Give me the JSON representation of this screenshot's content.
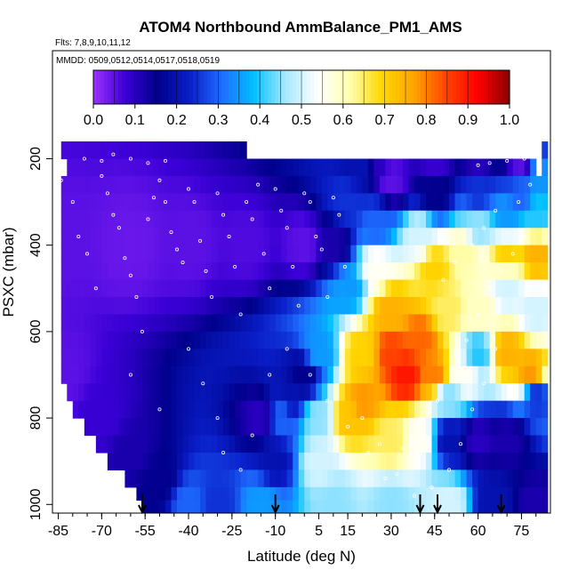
{
  "chart_data": {
    "type": "heatmap",
    "title": "ATOM4 Northbound AmmBalance_PM1_AMS",
    "flights_note": "Flts: 7,8,9,10,11,12",
    "dates_note": "MMDD: 0509,0512,0514,0517,0518,0519",
    "xlabel": "Latitude (deg N)",
    "ylabel": "PSXC (mbar)",
    "x_ticks": [
      "-85",
      "-70",
      "-55",
      "-40",
      "-25",
      "-10",
      "5",
      "15",
      "30",
      "45",
      "60",
      "75"
    ],
    "x_tick_values": [
      -85,
      -70,
      -55,
      -40,
      -25,
      -10,
      5,
      15,
      30,
      45,
      60,
      75
    ],
    "x_minor_step": 5,
    "xlim": [
      -87,
      85
    ],
    "y_ticks": [
      "200",
      "400",
      "600",
      "800",
      "1000"
    ],
    "y_tick_values": [
      200,
      400,
      600,
      800,
      1000
    ],
    "ylim": [
      1020,
      -50
    ],
    "colorbar": {
      "ticks": [
        "0.0",
        "0.1",
        "0.2",
        "0.3",
        "0.4",
        "0.5",
        "0.6",
        "0.7",
        "0.8",
        "0.9",
        "1.0"
      ],
      "range": [
        0,
        1
      ],
      "colors": [
        "#9b30ff",
        "#3a00d6",
        "#00008b",
        "#0a1ec8",
        "#1e6cff",
        "#00bfff",
        "#a8e8ff",
        "#ffffff",
        "#ffffb0",
        "#ffd700",
        "#ffa500",
        "#ff4500",
        "#ff0000",
        "#8b0000"
      ]
    },
    "pressure_levels": [
      180,
      220,
      260,
      300,
      340,
      380,
      420,
      460,
      500,
      540,
      580,
      620,
      660,
      700,
      740,
      780,
      820,
      860,
      900,
      940,
      980,
      1000
    ],
    "grid_lat_min": -84,
    "grid_lat_max": 82,
    "grid_lat_step": 2,
    "lower_left_boundary": [
      [
        190,
        -76
      ],
      [
        230,
        -84
      ],
      [
        330,
        -84
      ],
      [
        500,
        -84
      ],
      [
        620,
        -84
      ],
      [
        700,
        -83
      ],
      [
        740,
        -81
      ],
      [
        780,
        -79
      ],
      [
        820,
        -76
      ],
      [
        860,
        -72
      ],
      [
        900,
        -68
      ],
      [
        940,
        -62
      ],
      [
        980,
        -57
      ],
      [
        1020,
        -53
      ]
    ],
    "upper_boundary_by_lat": [
      [
        -76,
        180
      ],
      [
        -20,
        180
      ],
      [
        -19,
        185
      ],
      [
        80,
        185
      ],
      [
        80,
        230
      ],
      [
        82,
        230
      ]
    ],
    "anchor_points": [
      {
        "lat": -84,
        "p": 400,
        "v": 0.05
      },
      {
        "lat": -60,
        "p": 400,
        "v": 0.04
      },
      {
        "lat": -40,
        "p": 400,
        "v": 0.05
      },
      {
        "lat": -20,
        "p": 400,
        "v": 0.06
      },
      {
        "lat": 0,
        "p": 400,
        "v": 0.05
      },
      {
        "lat": 10,
        "p": 400,
        "v": 0.12
      },
      {
        "lat": -84,
        "p": 700,
        "v": 0.05
      },
      {
        "lat": -70,
        "p": 800,
        "v": 0.08
      },
      {
        "lat": -60,
        "p": 880,
        "v": 0.12
      },
      {
        "lat": -50,
        "p": 950,
        "v": 0.15
      },
      {
        "lat": -40,
        "p": 1000,
        "v": 0.3
      },
      {
        "lat": -30,
        "p": 1000,
        "v": 0.25
      },
      {
        "lat": -15,
        "p": 1000,
        "v": 0.35
      },
      {
        "lat": -10,
        "p": 900,
        "v": 0.2
      },
      {
        "lat": -15,
        "p": 800,
        "v": 0.1
      },
      {
        "lat": -8,
        "p": 800,
        "v": 0.3
      },
      {
        "lat": -5,
        "p": 750,
        "v": 0.2
      },
      {
        "lat": 0,
        "p": 700,
        "v": 0.15
      },
      {
        "lat": 5,
        "p": 650,
        "v": 0.35
      },
      {
        "lat": 5,
        "p": 800,
        "v": 0.45
      },
      {
        "lat": 5,
        "p": 900,
        "v": 0.5
      },
      {
        "lat": 10,
        "p": 1000,
        "v": 0.45
      },
      {
        "lat": 15,
        "p": 800,
        "v": 0.72
      },
      {
        "lat": 20,
        "p": 760,
        "v": 0.78
      },
      {
        "lat": 20,
        "p": 650,
        "v": 0.7
      },
      {
        "lat": 15,
        "p": 500,
        "v": 0.35
      },
      {
        "lat": 15,
        "p": 300,
        "v": 0.25
      },
      {
        "lat": 20,
        "p": 220,
        "v": 0.2
      },
      {
        "lat": 25,
        "p": 200,
        "v": 0.1
      },
      {
        "lat": 30,
        "p": 250,
        "v": 0.05
      },
      {
        "lat": 25,
        "p": 350,
        "v": 0.3
      },
      {
        "lat": 25,
        "p": 450,
        "v": 0.55
      },
      {
        "lat": 30,
        "p": 550,
        "v": 0.75
      },
      {
        "lat": 30,
        "p": 650,
        "v": 0.85
      },
      {
        "lat": 35,
        "p": 700,
        "v": 0.9
      },
      {
        "lat": 40,
        "p": 620,
        "v": 0.82
      },
      {
        "lat": 45,
        "p": 700,
        "v": 0.8
      },
      {
        "lat": 30,
        "p": 850,
        "v": 0.65
      },
      {
        "lat": 40,
        "p": 850,
        "v": 0.55
      },
      {
        "lat": 50,
        "p": 850,
        "v": 0.2
      },
      {
        "lat": 60,
        "p": 850,
        "v": 0.1
      },
      {
        "lat": 70,
        "p": 850,
        "v": 0.12
      },
      {
        "lat": 30,
        "p": 1000,
        "v": 0.45
      },
      {
        "lat": 50,
        "p": 1000,
        "v": 0.5
      },
      {
        "lat": 65,
        "p": 1000,
        "v": 0.2
      },
      {
        "lat": 80,
        "p": 1000,
        "v": 0.12
      },
      {
        "lat": 50,
        "p": 750,
        "v": 0.45
      },
      {
        "lat": 55,
        "p": 700,
        "v": 0.55
      },
      {
        "lat": 60,
        "p": 650,
        "v": 0.4
      },
      {
        "lat": 70,
        "p": 650,
        "v": 0.75
      },
      {
        "lat": 78,
        "p": 700,
        "v": 0.78
      },
      {
        "lat": 80,
        "p": 750,
        "v": 0.25
      },
      {
        "lat": 50,
        "p": 550,
        "v": 0.65
      },
      {
        "lat": 60,
        "p": 550,
        "v": 0.6
      },
      {
        "lat": 70,
        "p": 500,
        "v": 0.5
      },
      {
        "lat": 80,
        "p": 550,
        "v": 0.5
      },
      {
        "lat": 45,
        "p": 450,
        "v": 0.7
      },
      {
        "lat": 55,
        "p": 420,
        "v": 0.62
      },
      {
        "lat": 70,
        "p": 420,
        "v": 0.7
      },
      {
        "lat": 80,
        "p": 420,
        "v": 0.75
      },
      {
        "lat": 40,
        "p": 380,
        "v": 0.5
      },
      {
        "lat": 60,
        "p": 350,
        "v": 0.45
      },
      {
        "lat": 70,
        "p": 340,
        "v": 0.35
      },
      {
        "lat": 80,
        "p": 330,
        "v": 0.4
      },
      {
        "lat": 45,
        "p": 280,
        "v": 0.15
      },
      {
        "lat": 60,
        "p": 280,
        "v": 0.25
      },
      {
        "lat": 75,
        "p": 280,
        "v": 0.3
      },
      {
        "lat": 45,
        "p": 200,
        "v": 0.08
      },
      {
        "lat": 60,
        "p": 200,
        "v": 0.1
      },
      {
        "lat": 75,
        "p": 210,
        "v": 0.05
      },
      {
        "lat": 80,
        "p": 240,
        "v": 0.35
      }
    ],
    "flight_arrow_lats": [
      -56,
      -10,
      40,
      46,
      68
    ],
    "sample_points": [
      [
        -84,
        250
      ],
      [
        -80,
        300
      ],
      [
        -78,
        380
      ],
      [
        -75,
        420
      ],
      [
        -72,
        500
      ],
      [
        -70,
        240
      ],
      [
        -68,
        280
      ],
      [
        -66,
        330
      ],
      [
        -64,
        360
      ],
      [
        -62,
        430
      ],
      [
        -60,
        470
      ],
      [
        -58,
        520
      ],
      [
        -56,
        600
      ],
      [
        -54,
        340
      ],
      [
        -52,
        290
      ],
      [
        -50,
        250
      ],
      [
        -48,
        300
      ],
      [
        -46,
        370
      ],
      [
        -44,
        410
      ],
      [
        -42,
        440
      ],
      [
        -40,
        270
      ],
      [
        -38,
        300
      ],
      [
        -36,
        390
      ],
      [
        -34,
        460
      ],
      [
        -32,
        520
      ],
      [
        -30,
        280
      ],
      [
        -28,
        330
      ],
      [
        -26,
        380
      ],
      [
        -24,
        450
      ],
      [
        -22,
        560
      ],
      [
        -20,
        300
      ],
      [
        -18,
        340
      ],
      [
        -16,
        260
      ],
      [
        -14,
        420
      ],
      [
        -12,
        500
      ],
      [
        -10,
        270
      ],
      [
        -8,
        320
      ],
      [
        -6,
        360
      ],
      [
        -4,
        450
      ],
      [
        -2,
        540
      ],
      [
        0,
        280
      ],
      [
        2,
        300
      ],
      [
        4,
        380
      ],
      [
        6,
        410
      ],
      [
        8,
        520
      ],
      [
        10,
        290
      ],
      [
        12,
        330
      ],
      [
        14,
        450
      ],
      [
        -60,
        700
      ],
      [
        -50,
        780
      ],
      [
        -40,
        640
      ],
      [
        -35,
        720
      ],
      [
        -30,
        800
      ],
      [
        -28,
        880
      ],
      [
        -22,
        920
      ],
      [
        -18,
        840
      ],
      [
        -12,
        700
      ],
      [
        -6,
        640
      ],
      [
        2,
        700
      ],
      [
        8,
        760
      ],
      [
        15,
        820
      ],
      [
        22,
        880
      ],
      [
        28,
        940
      ],
      [
        34,
        870
      ],
      [
        40,
        800
      ],
      [
        46,
        760
      ],
      [
        52,
        690
      ],
      [
        56,
        620
      ],
      [
        60,
        560
      ],
      [
        64,
        500
      ],
      [
        68,
        460
      ],
      [
        72,
        420
      ],
      [
        76,
        380
      ],
      [
        70,
        580
      ],
      [
        66,
        640
      ],
      [
        62,
        720
      ],
      [
        58,
        780
      ],
      [
        54,
        860
      ],
      [
        50,
        920
      ],
      [
        44,
        960
      ],
      [
        38,
        980
      ],
      [
        32,
        930
      ],
      [
        26,
        860
      ],
      [
        20,
        800
      ],
      [
        48,
        480
      ],
      [
        52,
        440
      ],
      [
        58,
        400
      ],
      [
        62,
        360
      ],
      [
        66,
        320
      ],
      [
        74,
        300
      ],
      [
        78,
        260
      ],
      [
        -76,
        200
      ],
      [
        -70,
        205
      ],
      [
        -66,
        190
      ],
      [
        -60,
        200
      ],
      [
        -54,
        210
      ],
      [
        -48,
        205
      ],
      [
        60,
        215
      ],
      [
        64,
        210
      ],
      [
        70,
        205
      ],
      [
        76,
        200
      ]
    ]
  }
}
